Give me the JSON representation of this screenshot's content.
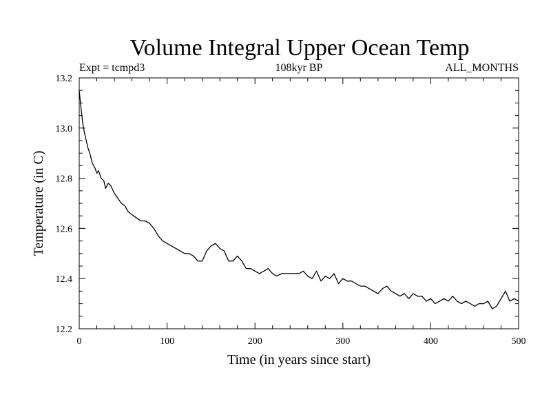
{
  "chart_data": {
    "type": "line",
    "title": "Volume Integral Upper Ocean Temp",
    "subtitle_left": "Expt = tcmpd3",
    "subtitle_center": "108kyr BP",
    "subtitle_right": "ALL_MONTHS",
    "xlabel": "Time (in years since start)",
    "ylabel": "Temperature (in C)",
    "xlim": [
      0,
      500
    ],
    "ylim": [
      12.2,
      13.2
    ],
    "xticks": [
      0,
      100,
      200,
      300,
      400,
      500
    ],
    "yticks": [
      12.2,
      12.4,
      12.6,
      12.8,
      13.0,
      13.2
    ],
    "xtick_labels": [
      "0",
      "100",
      "200",
      "300",
      "400",
      "500"
    ],
    "ytick_labels": [
      "12.2",
      "12.4",
      "12.6",
      "12.8",
      "13.0",
      "13.2"
    ],
    "grid": false,
    "line_color": "#000000",
    "series": [
      {
        "x": [
          0,
          2,
          4,
          6,
          8,
          10,
          12,
          15,
          18,
          20,
          22,
          25,
          28,
          30,
          33,
          36,
          40,
          44,
          48,
          52,
          55,
          58,
          62,
          66,
          70,
          75,
          80,
          85,
          90,
          95,
          100,
          105,
          110,
          115,
          120,
          125,
          130,
          135,
          140,
          145,
          150,
          155,
          160,
          165,
          170,
          175,
          180,
          185,
          190,
          195,
          200,
          205,
          210,
          215,
          220,
          225,
          230,
          235,
          240,
          245,
          250,
          255,
          260,
          265,
          270,
          275,
          280,
          285,
          290,
          295,
          300,
          305,
          310,
          315,
          320,
          325,
          330,
          335,
          340,
          345,
          350,
          355,
          360,
          365,
          370,
          375,
          380,
          385,
          390,
          395,
          400,
          405,
          410,
          415,
          420,
          425,
          430,
          435,
          440,
          445,
          450,
          455,
          460,
          465,
          470,
          475,
          480,
          485,
          490,
          495,
          500
        ],
        "y": [
          13.15,
          13.08,
          13.02,
          12.98,
          12.95,
          12.92,
          12.9,
          12.86,
          12.84,
          12.82,
          12.83,
          12.8,
          12.79,
          12.76,
          12.78,
          12.77,
          12.74,
          12.72,
          12.7,
          12.69,
          12.67,
          12.66,
          12.65,
          12.64,
          12.63,
          12.63,
          12.62,
          12.6,
          12.57,
          12.55,
          12.54,
          12.53,
          12.52,
          12.51,
          12.5,
          12.5,
          12.49,
          12.47,
          12.47,
          12.51,
          12.53,
          12.54,
          12.52,
          12.51,
          12.47,
          12.47,
          12.49,
          12.47,
          12.44,
          12.44,
          12.43,
          12.42,
          12.43,
          12.44,
          12.42,
          12.41,
          12.42,
          12.42,
          12.42,
          12.42,
          12.42,
          12.43,
          12.41,
          12.4,
          12.43,
          12.39,
          12.41,
          12.4,
          12.42,
          12.38,
          12.4,
          12.39,
          12.39,
          12.38,
          12.37,
          12.37,
          12.36,
          12.35,
          12.34,
          12.36,
          12.37,
          12.35,
          12.34,
          12.33,
          12.34,
          12.32,
          12.34,
          12.33,
          12.33,
          12.31,
          12.32,
          12.3,
          12.31,
          12.32,
          12.31,
          12.33,
          12.31,
          12.3,
          12.31,
          12.3,
          12.29,
          12.3,
          12.3,
          12.31,
          12.28,
          12.29,
          12.32,
          12.35,
          12.31,
          12.32,
          12.31
        ]
      }
    ]
  }
}
